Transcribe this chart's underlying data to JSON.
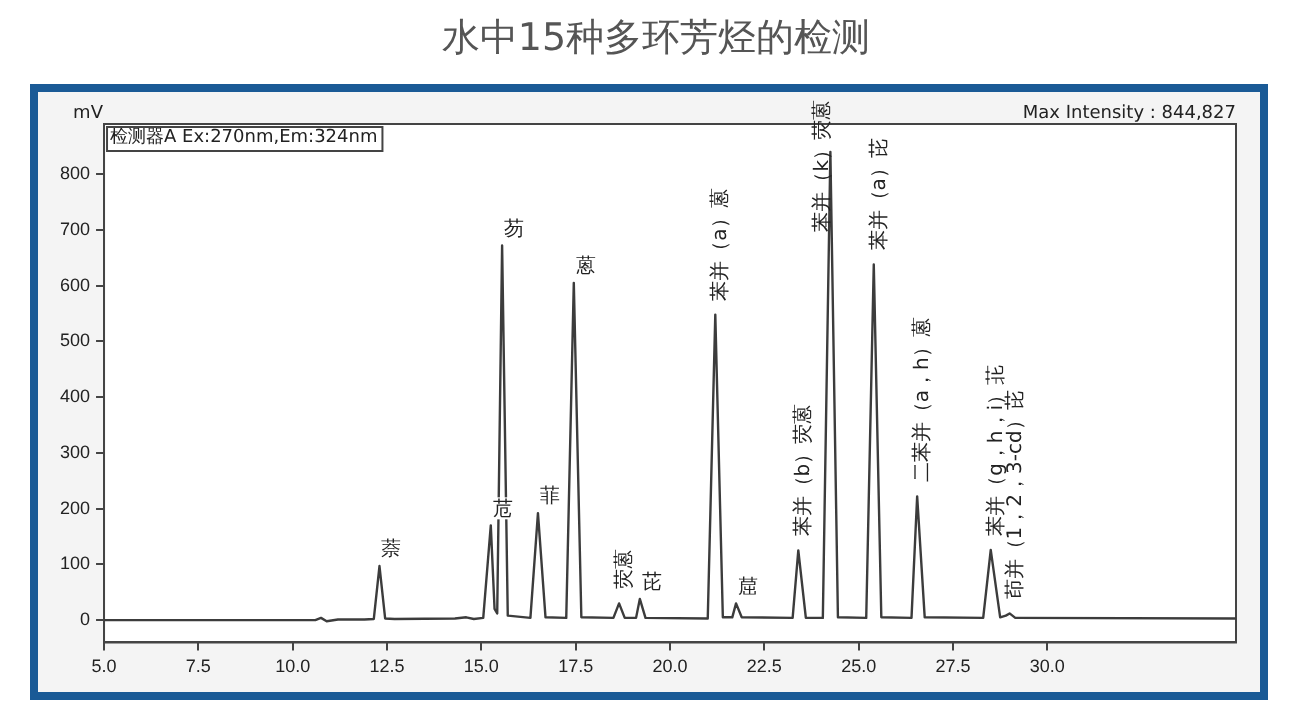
{
  "chart_data": {
    "type": "line",
    "title": "水中15种多环芳烃的检测",
    "ylabel": "mV",
    "x": [
      5,
      10.6,
      10.75,
      10.9,
      11.2,
      11.9,
      12.15,
      12.3,
      12.45,
      12.7,
      14.3,
      14.6,
      14.8,
      15.05,
      15.25,
      15.35,
      15.42,
      15.55,
      15.7,
      16.3,
      16.5,
      16.7,
      17.25,
      17.45,
      17.65,
      18.5,
      18.65,
      18.8,
      19.1,
      19.2,
      19.35,
      21.0,
      21.2,
      21.4,
      21.65,
      21.75,
      21.9,
      23.25,
      23.4,
      23.6,
      24.05,
      24.25,
      24.45,
      25.2,
      25.4,
      25.6,
      26.4,
      26.55,
      26.75,
      28.3,
      28.5,
      28.75,
      28.9,
      29.0,
      29.15,
      35
    ],
    "series": [
      {
        "color": "#3c3c3c",
        "values": [
          0,
          0,
          4,
          -2,
          1,
          1,
          2,
          97,
          3,
          2,
          3,
          5,
          2,
          4,
          170,
          20,
          12,
          672,
          8,
          4,
          192,
          5,
          4,
          605,
          5,
          4,
          30,
          4,
          4,
          38,
          4,
          3,
          548,
          5,
          5,
          30,
          5,
          4,
          125,
          4,
          4,
          840,
          5,
          4,
          638,
          5,
          4,
          222,
          5,
          4,
          126,
          5,
          8,
          12,
          4,
          3
        ]
      }
    ],
    "xlim": [
      5,
      35
    ],
    "ylim": [
      -40,
      890
    ],
    "xticks": [
      {
        "value": 5,
        "label": "5.0"
      },
      {
        "value": 7.5,
        "label": "7.5"
      },
      {
        "value": 10,
        "label": "10.0"
      },
      {
        "value": 12.5,
        "label": "12.5"
      },
      {
        "value": 15,
        "label": "15.0"
      },
      {
        "value": 17.5,
        "label": "17.5"
      },
      {
        "value": 20,
        "label": "20.0"
      },
      {
        "value": 22.5,
        "label": "22.5"
      },
      {
        "value": 25,
        "label": "25.0"
      },
      {
        "value": 27.5,
        "label": "27.5"
      },
      {
        "value": 30,
        "label": "30.0"
      }
    ],
    "yticks": [
      0,
      100,
      200,
      300,
      400,
      500,
      600,
      700,
      800
    ],
    "grid": false,
    "legend": false,
    "marker": "none",
    "line_style": "solid",
    "annotations": [
      "检测器A Ex:270nm,Em:324nm",
      "Max Intensity : 844,827",
      {
        "text": "萘",
        "x": 12.3,
        "y": 97
      },
      {
        "text": "苊",
        "x": 15.25,
        "y": 170
      },
      {
        "text": "芴",
        "x": 15.55,
        "y": 672
      },
      {
        "text": "菲",
        "x": 16.5,
        "y": 192
      },
      {
        "text": "蒽",
        "x": 17.45,
        "y": 605
      },
      {
        "text": "荧蒽",
        "x": 18.65,
        "y": 30
      },
      {
        "text": "芘",
        "x": 19.2,
        "y": 38
      },
      {
        "text": "苯并（a）蒽",
        "x": 21.2,
        "y": 548
      },
      {
        "text": "䓛",
        "x": 21.75,
        "y": 30
      },
      {
        "text": "苯并（b）荧蒽",
        "x": 23.4,
        "y": 125
      },
      {
        "text": "苯并（k）荧蒽",
        "x": 24.25,
        "y": 840
      },
      {
        "text": "苯并（a）芘",
        "x": 25.4,
        "y": 638
      },
      {
        "text": "二苯并（a，h）蒽",
        "x": 26.55,
        "y": 222
      },
      {
        "text": "苯并（g，h，i）苝",
        "x": 28.5,
        "y": 126
      },
      {
        "text": "茚并（1，2，3-cd）芘",
        "x": 29.0,
        "y": 12
      }
    ]
  }
}
